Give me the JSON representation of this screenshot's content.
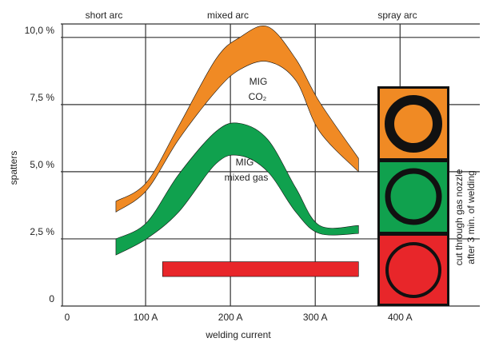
{
  "chart_data": {
    "type": "band",
    "top_labels": [
      "short arc",
      "mixed arc",
      "spray arc"
    ],
    "y_label": "spatters",
    "x_label": "welding current",
    "annotations": [
      "MIG",
      "CO₂",
      "MIG",
      "mixed gas"
    ],
    "side_note": [
      "cut through gas nozzle",
      "after 3 min. of welding"
    ],
    "xlim": [
      0,
      494
    ],
    "ylim": [
      0,
      10.5
    ],
    "xticks": [
      0,
      {
        "value": 100,
        "label": "100 A"
      },
      {
        "value": 200,
        "label": "200 A"
      },
      {
        "value": 300,
        "label": "300 A"
      },
      {
        "value": 400,
        "label": "400 A"
      }
    ],
    "yticks": [
      0,
      {
        "value": 2.5,
        "label": "2,5 %"
      },
      {
        "value": 5,
        "label": "5,0 %"
      },
      {
        "value": 7.5,
        "label": "7,5 %"
      },
      {
        "value": 10,
        "label": "10,0 %"
      }
    ],
    "grid": true,
    "series": [
      {
        "color": "#f08a24",
        "x": [
          65,
          101,
          139,
          183,
          211,
          244,
          277,
          305,
          351
        ],
        "upper": [
          3.9,
          4.6,
          6.7,
          9.2,
          10.0,
          10.4,
          9.2,
          7.6,
          5.5
        ],
        "lower": [
          3.5,
          4.3,
          6.2,
          8.0,
          8.8,
          9.1,
          8.4,
          6.5,
          5.0
        ]
      },
      {
        "color": "#10a14e",
        "x": [
          65,
          101,
          139,
          183,
          211,
          244,
          277,
          305,
          351
        ],
        "upper": [
          2.5,
          3.1,
          4.9,
          6.5,
          6.8,
          6.2,
          4.4,
          3.0,
          3.0
        ],
        "lower": [
          1.9,
          2.5,
          3.5,
          5.3,
          5.6,
          5.0,
          3.5,
          2.7,
          2.7
        ]
      },
      {
        "color": "#e8262a",
        "x": [
          120,
          351
        ],
        "upper": [
          1.65,
          1.65
        ],
        "lower": [
          1.1,
          1.1
        ]
      }
    ]
  }
}
